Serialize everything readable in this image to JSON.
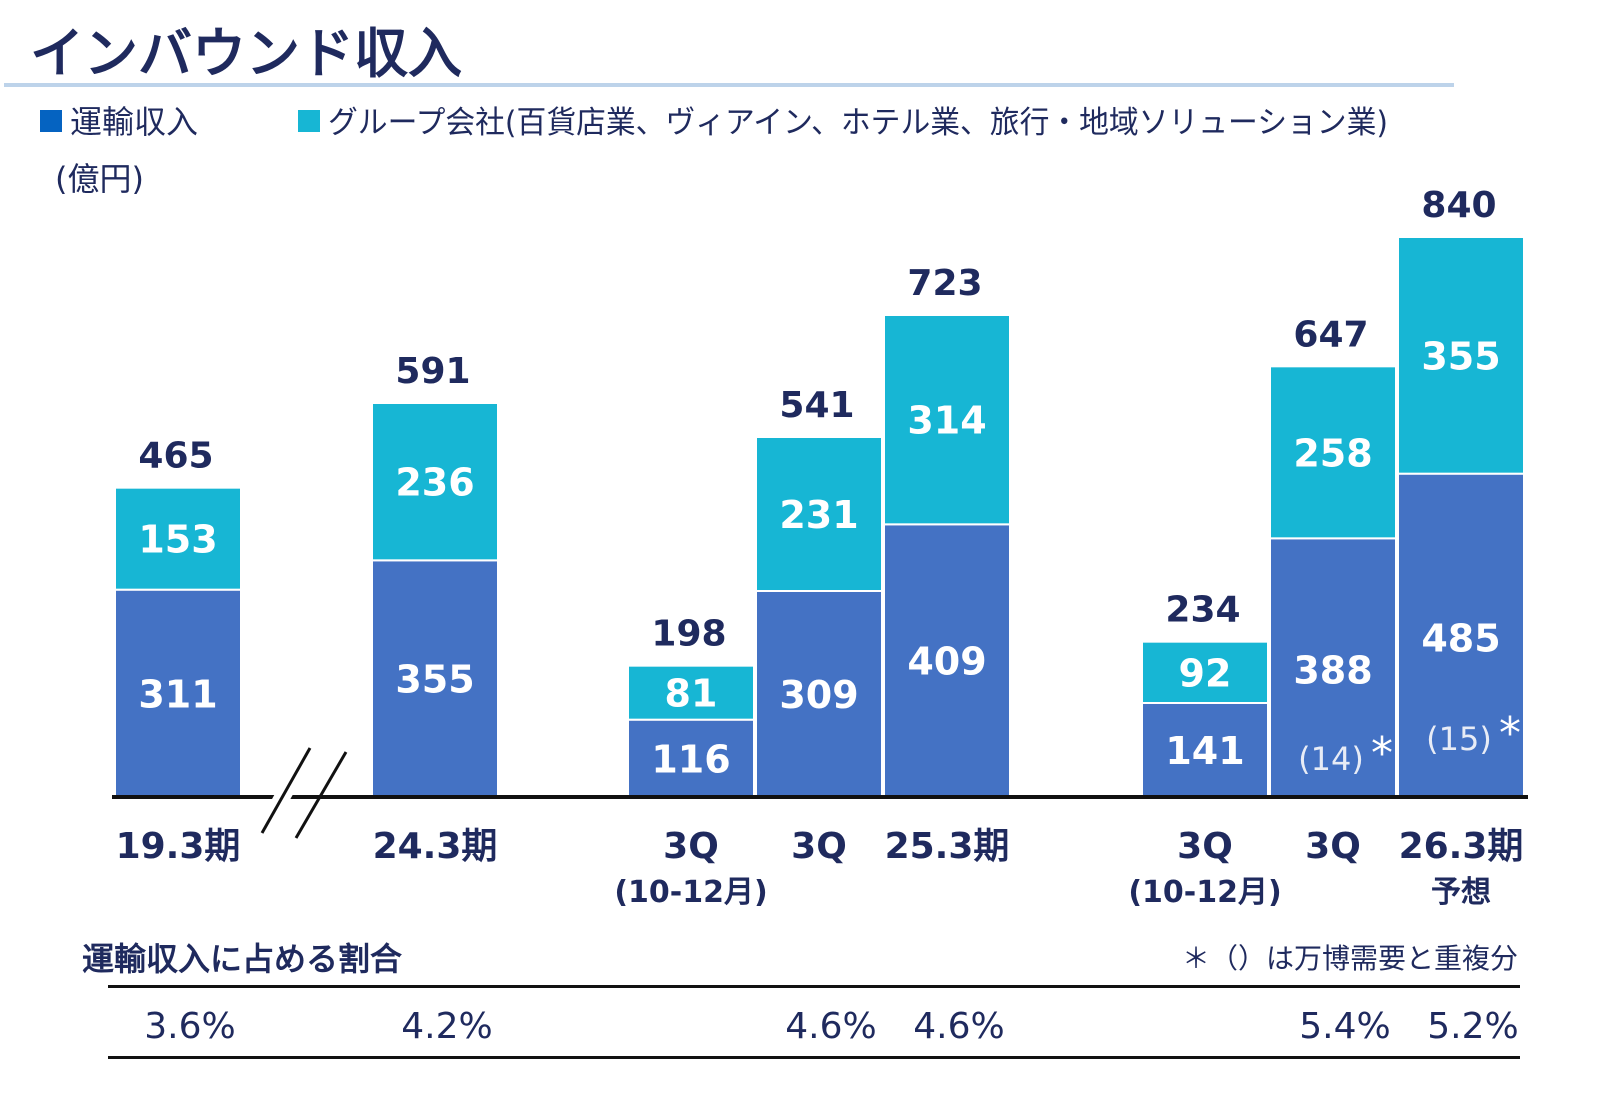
{
  "title": "インバウンド収入",
  "unit": "(億円)",
  "colors": {
    "transport": "#4472C4",
    "group": "#17B6D4",
    "legend_transport": "#0563C1",
    "text": "#1F2A5E"
  },
  "chart_data": {
    "type": "bar",
    "stacked": true,
    "title": "インバウンド収入",
    "ylabel": "(億円)",
    "axis_break_after": "19.3期",
    "categories": [
      {
        "label": "19.3期",
        "sub": ""
      },
      {
        "label": "24.3期",
        "sub": ""
      },
      {
        "label": "3Q",
        "sub": "(10-12月)"
      },
      {
        "label": "3Q",
        "sub": ""
      },
      {
        "label": "25.3期",
        "sub": ""
      },
      {
        "label": "3Q",
        "sub": "(10-12月)"
      },
      {
        "label": "3Q",
        "sub": ""
      },
      {
        "label": "26.3期",
        "sub": "予想"
      }
    ],
    "series": [
      {
        "name": "運輸収入",
        "values": [
          311,
          355,
          116,
          309,
          409,
          141,
          388,
          485
        ]
      },
      {
        "name": "グループ会社(百貨店業、ヴィアイン、ホテル業、旅行・地域ソリューション業)",
        "values": [
          153,
          236,
          81,
          231,
          314,
          92,
          258,
          355
        ]
      }
    ],
    "totals": [
      465,
      591,
      198,
      541,
      723,
      234,
      647,
      840
    ],
    "expo_overlap": [
      "",
      "",
      "",
      "",
      "",
      "",
      "(14)",
      "(15)"
    ],
    "ratio_title": "運輸収入に占める割合",
    "ratios": [
      "3.6%",
      "4.2%",
      "",
      "4.6%",
      "4.6%",
      "",
      "5.4%",
      "5.2%"
    ],
    "footnote": "＊（）は万博需要と重複分",
    "asterisk": "*",
    "legend_position": "top-left"
  }
}
